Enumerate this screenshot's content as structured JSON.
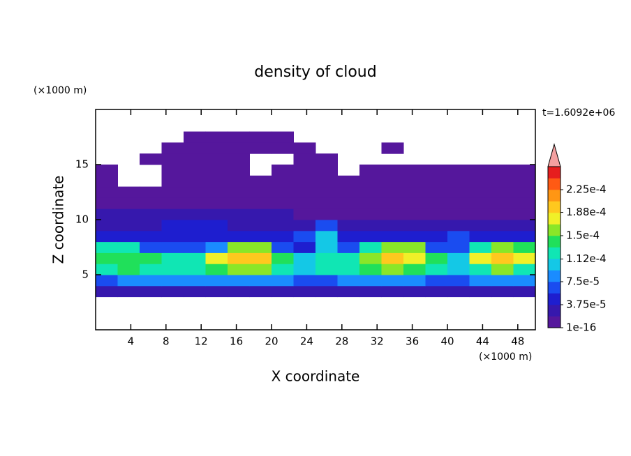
{
  "chart_data": {
    "type": "contour",
    "title": "density of cloud",
    "x_label": "X coordinate",
    "y_label": "Z coordinate",
    "x_unit": "(×1000 m)",
    "y_unit": "(×1000 m)",
    "annotation": "t=1.6092e+06",
    "xlim": [
      0,
      50
    ],
    "ylim": [
      0,
      20
    ],
    "xticks": [
      4,
      8,
      12,
      16,
      20,
      24,
      28,
      32,
      36,
      40,
      44,
      48
    ],
    "yticks": [
      5,
      10,
      15
    ],
    "x": [
      1.25,
      3.75,
      6.25,
      8.75,
      11.25,
      13.75,
      16.25,
      18.75,
      21.25,
      23.75,
      26.25,
      28.75,
      31.25,
      33.75,
      36.25,
      38.75,
      41.25,
      43.75,
      46.25,
      48.75
    ],
    "y": [
      3.5,
      4.5,
      5.5,
      6.5,
      7.5,
      8.5,
      9.5,
      10.5,
      11.5,
      12.5,
      13.5,
      14.5,
      15.5,
      16.5,
      17.5
    ],
    "z": [
      [
        3e-05,
        3e-05,
        3e-05,
        3e-05,
        3e-05,
        3e-05,
        3e-05,
        3e-05,
        3e-05,
        3e-05,
        3e-05,
        3e-05,
        3e-05,
        3e-05,
        3e-05,
        3e-05,
        3e-05,
        3e-05,
        3e-05,
        3e-05
      ],
      [
        6.5e-05,
        8e-05,
        8e-05,
        8e-05,
        8e-05,
        8e-05,
        8e-05,
        8e-05,
        8e-05,
        6.5e-05,
        6.5e-05,
        8e-05,
        8e-05,
        8e-05,
        8e-05,
        6.5e-05,
        6.5e-05,
        8e-05,
        8e-05,
        8e-05
      ],
      [
        0.00013,
        0.00014,
        0.00013,
        0.00012,
        0.00012,
        0.00014,
        0.00016,
        0.00016,
        0.00012,
        0.0001,
        0.00012,
        0.00012,
        0.00014,
        0.00015,
        0.00014,
        0.00012,
        0.00011,
        0.00013,
        0.00015,
        0.00013
      ],
      [
        0.00014,
        0.00014,
        0.00014,
        0.00012,
        0.00012,
        0.00017,
        0.000195,
        0.000195,
        0.00014,
        0.0001,
        0.00012,
        0.00013,
        0.00016,
        0.000195,
        0.00017,
        0.00014,
        0.0001,
        0.00017,
        0.000195,
        0.00017
      ],
      [
        0.00012,
        0.00012,
        7e-05,
        7e-05,
        7e-05,
        9e-05,
        0.00016,
        0.00016,
        7e-05,
        5e-05,
        0.0001,
        6e-05,
        0.00012,
        0.00016,
        0.00016,
        7e-05,
        6e-05,
        0.00012,
        0.00016,
        0.00014
      ],
      [
        4.5e-05,
        4.5e-05,
        4.5e-05,
        4.5e-05,
        4.5e-05,
        4.5e-05,
        4.5e-05,
        4.5e-05,
        4.5e-05,
        6e-05,
        0.0001,
        4.5e-05,
        4.5e-05,
        4.5e-05,
        4.5e-05,
        4.5e-05,
        6e-05,
        4.5e-05,
        4.5e-05,
        4.5e-05
      ],
      [
        3e-05,
        3e-05,
        3e-05,
        4.5e-05,
        4.5e-05,
        4.5e-05,
        3e-05,
        3e-05,
        3e-05,
        3e-05,
        6e-05,
        3e-05,
        3e-05,
        3e-05,
        3e-05,
        3e-05,
        3e-05,
        3e-05,
        3e-05,
        3e-05
      ],
      [
        2.5e-05,
        2.5e-05,
        2.5e-05,
        2.5e-05,
        2.5e-05,
        2.5e-05,
        2.5e-05,
        2.5e-05,
        2.5e-05,
        1e-05,
        1e-05,
        1e-05,
        1e-05,
        1e-05,
        1e-05,
        1e-05,
        1e-05,
        1e-05,
        1e-05,
        1e-05
      ],
      [
        1e-05,
        1e-05,
        1e-05,
        1e-05,
        1e-05,
        1e-05,
        1e-05,
        1e-05,
        1e-05,
        1e-05,
        1e-05,
        1e-05,
        1e-05,
        1e-05,
        1e-05,
        1e-05,
        1e-05,
        1e-05,
        1e-05,
        1e-05
      ],
      [
        1e-05,
        1e-05,
        1e-05,
        1e-05,
        1e-05,
        1e-05,
        1e-05,
        1e-05,
        1e-05,
        1e-05,
        1e-05,
        1e-05,
        1e-05,
        1e-05,
        1e-05,
        1e-05,
        1e-05,
        1e-05,
        1e-05,
        1e-05
      ],
      [
        1e-05,
        null,
        null,
        1e-05,
        1e-05,
        1e-05,
        1e-05,
        1e-05,
        1e-05,
        1e-05,
        1e-05,
        1e-05,
        1e-05,
        1e-05,
        1e-05,
        1e-05,
        1e-05,
        1e-05,
        1e-05,
        1e-05
      ],
      [
        1e-05,
        null,
        null,
        1e-05,
        1e-05,
        1e-05,
        1e-05,
        null,
        1e-05,
        1e-05,
        1e-05,
        null,
        1e-05,
        1e-05,
        1e-05,
        1e-05,
        1e-05,
        1e-05,
        1e-05,
        1e-05
      ],
      [
        null,
        null,
        1e-05,
        1e-05,
        1e-05,
        1e-05,
        1e-05,
        null,
        null,
        1e-05,
        1e-05,
        null,
        null,
        null,
        null,
        null,
        null,
        null,
        null,
        null
      ],
      [
        null,
        null,
        null,
        1e-05,
        1e-05,
        1e-05,
        1e-05,
        1e-05,
        1e-05,
        1e-05,
        null,
        null,
        null,
        1e-05,
        null,
        null,
        null,
        null,
        null,
        null
      ],
      [
        null,
        null,
        null,
        null,
        1e-05,
        1e-05,
        1e-05,
        1e-05,
        1e-05,
        null,
        null,
        null,
        null,
        null,
        null,
        null,
        null,
        null,
        null,
        null
      ]
    ],
    "colorbar": {
      "levels": [
        1e-16,
        1.875e-05,
        3.75e-05,
        5.625e-05,
        7.5e-05,
        9.375e-05,
        0.0001125,
        0.00013125,
        0.00015,
        0.00016875,
        0.0001875,
        0.00020625,
        0.000225,
        0.00024375,
        0.0002625
      ],
      "colors": [
        "#55179c",
        "#3618ad",
        "#1e1ecf",
        "#1a4cf0",
        "#1a8cff",
        "#14c8e6",
        "#10e6b4",
        "#20e05a",
        "#8ae628",
        "#f0f028",
        "#ffc81e",
        "#ff9614",
        "#ff5a14",
        "#e61e1e"
      ],
      "extend_color": "#f4a0a0",
      "ticks": [
        {
          "value": 1e-16,
          "label": "1e-16"
        },
        {
          "value": 3.75e-05,
          "label": "3.75e-5"
        },
        {
          "value": 7.5e-05,
          "label": "7.5e-5"
        },
        {
          "value": 0.000112,
          "label": "1.12e-4"
        },
        {
          "value": 0.00015,
          "label": "1.5e-4"
        },
        {
          "value": 0.000188,
          "label": "1.88e-4"
        },
        {
          "value": 0.000225,
          "label": "2.25e-4"
        }
      ]
    }
  }
}
